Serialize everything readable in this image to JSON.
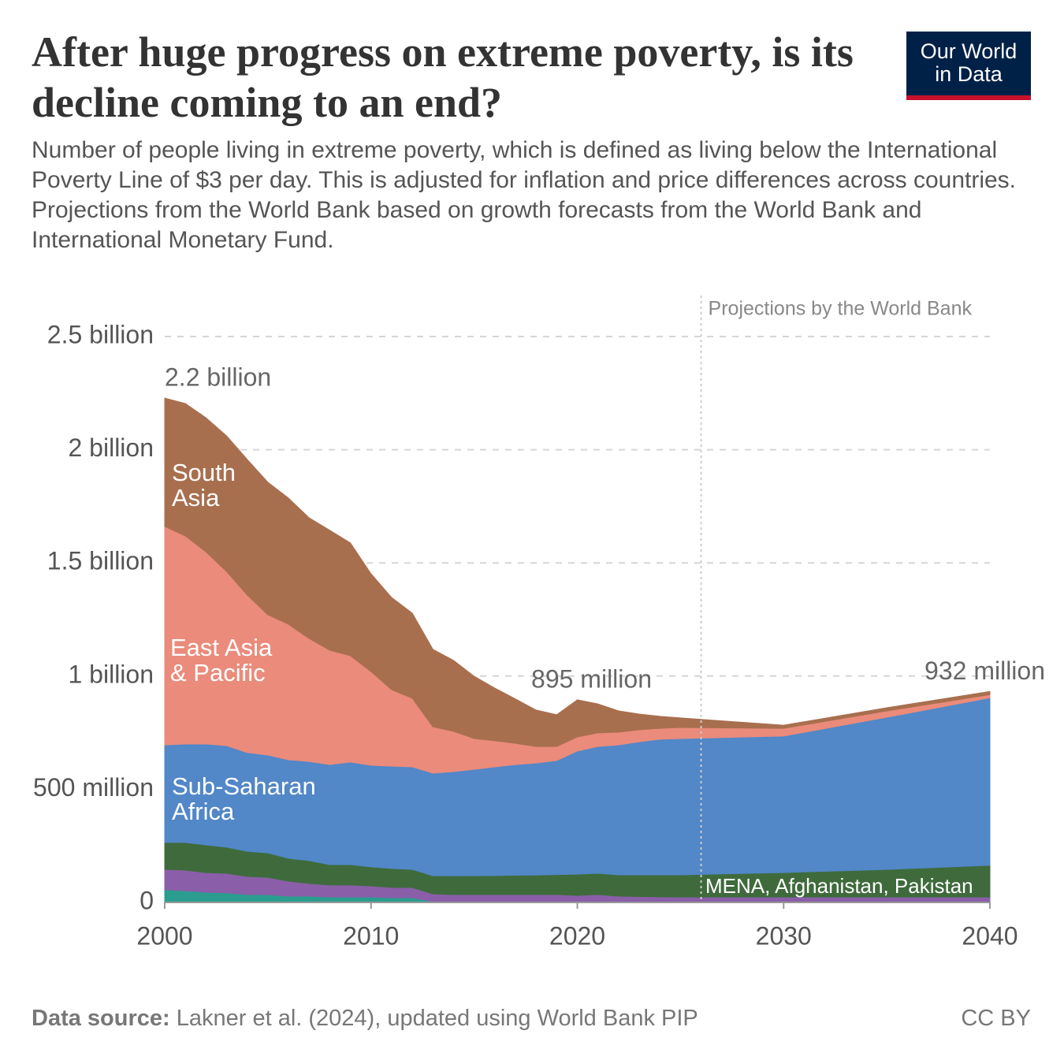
{
  "header": {
    "title": "After huge progress on extreme poverty, is its decline coming to an end?",
    "subtitle": "Number of people living in extreme poverty, which is defined as living below the International Poverty Line of $3 per day. This is adjusted for inflation and price differences across countries. Projections from the World Bank based on growth forecasts from the World Bank and International Monetary Fund.",
    "logo": "Our World in Data"
  },
  "chart_data": {
    "type": "stacked_area",
    "x": [
      2000,
      2001,
      2002,
      2003,
      2004,
      2005,
      2006,
      2007,
      2008,
      2009,
      2010,
      2011,
      2012,
      2013,
      2014,
      2015,
      2016,
      2017,
      2018,
      2019,
      2020,
      2021,
      2022,
      2023,
      2024,
      2025,
      2030,
      2035,
      2040
    ],
    "series": [
      {
        "color": "#2a9d8f",
        "values": [
          56000000,
          52000000,
          45000000,
          42000000,
          35000000,
          35000000,
          28000000,
          28000000,
          24000000,
          24000000,
          24000000,
          21000000,
          21000000,
          4000000,
          4000000,
          4000000,
          4000000,
          4000000,
          4000000,
          4000000,
          3000000,
          3000000,
          3000000,
          3000000,
          3000000,
          3000000,
          3000000,
          3000000,
          3000000
        ]
      },
      {
        "color": "#8a5ea8",
        "values": [
          90000000,
          91000000,
          87000000,
          87000000,
          80000000,
          76000000,
          66000000,
          56000000,
          53000000,
          53000000,
          49000000,
          45000000,
          45000000,
          34000000,
          31000000,
          31000000,
          31000000,
          31000000,
          31000000,
          31000000,
          28000000,
          32000000,
          25000000,
          23000000,
          22000000,
          21000000,
          21000000,
          21000000,
          21000000
        ]
      },
      {
        "name": "MENA, Afghanistan, Pakistan",
        "color": "#3f6b3c",
        "values": [
          119000000,
          122000000,
          122000000,
          115000000,
          111000000,
          108000000,
          101000000,
          101000000,
          90000000,
          90000000,
          84000000,
          84000000,
          80000000,
          80000000,
          83000000,
          83000000,
          84000000,
          85000000,
          86000000,
          88000000,
          94000000,
          94000000,
          94000000,
          96000000,
          97000000,
          98000000,
          108000000,
          122000000,
          140000000
        ]
      },
      {
        "name": "Sub-Saharan Africa",
        "color": "#5287c8",
        "values": [
          431000000,
          435000000,
          446000000,
          449000000,
          436000000,
          432000000,
          435000000,
          438000000,
          442000000,
          453000000,
          449000000,
          452000000,
          453000000,
          453000000,
          460000000,
          470000000,
          480000000,
          489000000,
          495000000,
          504000000,
          544000000,
          560000000,
          574000000,
          588000000,
          599000000,
          602000000,
          603000000,
          672000000,
          740000000
        ]
      },
      {
        "name": "East Asia & Pacific",
        "color": "#ea8b7b",
        "values": [
          965000000,
          919000000,
          849000000,
          769000000,
          696000000,
          620000000,
          599000000,
          543000000,
          505000000,
          470000000,
          414000000,
          338000000,
          303000000,
          205000000,
          178000000,
          136000000,
          115000000,
          94000000,
          73000000,
          62000000,
          62000000,
          60000000,
          56000000,
          53000000,
          48000000,
          49000000,
          34000000,
          28000000,
          14000000
        ]
      },
      {
        "name": "South Asia",
        "color": "#a86f4f",
        "values": [
          567000000,
          585000000,
          592000000,
          599000000,
          599000000,
          585000000,
          557000000,
          533000000,
          530000000,
          498000000,
          432000000,
          407000000,
          376000000,
          342000000,
          313000000,
          275000000,
          233000000,
          196000000,
          161000000,
          140000000,
          164000000,
          128000000,
          94000000,
          69000000,
          53000000,
          42000000,
          14000000,
          14000000,
          14000000
        ]
      }
    ],
    "xlim": [
      2000,
      2040
    ],
    "xticks": [
      2000,
      2010,
      2020,
      2030,
      2040
    ],
    "ylim": [
      0,
      2500000000
    ],
    "yticks": [
      0,
      {
        "value": 500000000,
        "label": "500 million"
      },
      {
        "value": 1000000000,
        "label": "1 billion"
      },
      {
        "value": 1500000000,
        "label": "1.5 billion"
      },
      {
        "value": 2000000000,
        "label": "2 billion"
      },
      {
        "value": 2500000000,
        "label": "2.5 billion"
      }
    ],
    "grid": true,
    "projection": {
      "x": 2026,
      "label": "Projections by the World Bank"
    },
    "annotations": [
      {
        "x": 2000,
        "value": 2228000000,
        "label": "2.2 billion"
      },
      {
        "x": 2020,
        "value": 895000000,
        "label": "895 million"
      },
      {
        "x": 2040,
        "value": 932000000,
        "label": "932 million"
      }
    ]
  },
  "footer": {
    "source_label": "Data source:",
    "source": "Lakner et al. (2024), updated using World Bank PIP",
    "license": "CC BY"
  }
}
